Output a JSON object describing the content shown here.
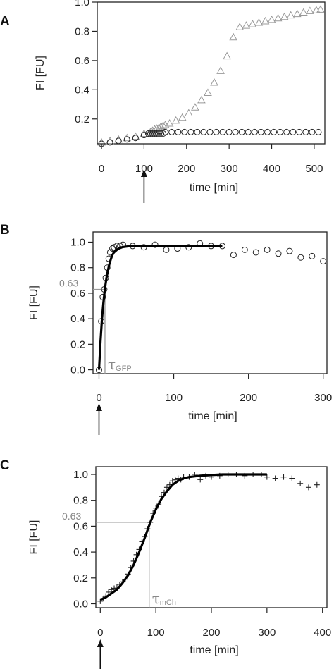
{
  "chart_data": [
    {
      "panel": "A",
      "type": "scatter",
      "xlabel": "time [min]",
      "ylabel": "FI [FU]",
      "xlim": [
        -10,
        525
      ],
      "ylim": [
        0.03,
        1.0
      ],
      "xticks": [
        0,
        100,
        200,
        300,
        400,
        500
      ],
      "yticks": [
        0.2,
        0.4,
        0.6,
        0.8,
        1.0
      ],
      "arrow_at_x": 100,
      "series": [
        {
          "marker": "triangle",
          "color": "#999999",
          "x": [
            0,
            20,
            40,
            60,
            80,
            100,
            115,
            120,
            125,
            130,
            135,
            140,
            145,
            150,
            160,
            175,
            190,
            205,
            220,
            235,
            250,
            265,
            280,
            295,
            310,
            325,
            340,
            355,
            370,
            385,
            400,
            415,
            430,
            445,
            460,
            475,
            490,
            505,
            515
          ],
          "y": [
            0.04,
            0.05,
            0.06,
            0.07,
            0.08,
            0.1,
            0.11,
            0.12,
            0.13,
            0.135,
            0.14,
            0.15,
            0.155,
            0.16,
            0.17,
            0.19,
            0.21,
            0.24,
            0.28,
            0.33,
            0.38,
            0.45,
            0.53,
            0.63,
            0.76,
            0.83,
            0.84,
            0.85,
            0.86,
            0.87,
            0.88,
            0.89,
            0.9,
            0.91,
            0.92,
            0.93,
            0.94,
            0.945,
            0.95
          ]
        },
        {
          "marker": "circle",
          "color": "#222222",
          "x": [
            0,
            20,
            40,
            60,
            80,
            100,
            110,
            115,
            120,
            125,
            130,
            135,
            140,
            145,
            150,
            165,
            180,
            195,
            210,
            225,
            240,
            255,
            270,
            285,
            300,
            315,
            330,
            345,
            360,
            375,
            390,
            405,
            420,
            435,
            450,
            465,
            480,
            495,
            510
          ],
          "y": [
            0.03,
            0.04,
            0.05,
            0.06,
            0.07,
            0.09,
            0.1,
            0.1,
            0.1,
            0.1,
            0.1,
            0.1,
            0.1,
            0.1,
            0.11,
            0.11,
            0.11,
            0.11,
            0.11,
            0.11,
            0.11,
            0.11,
            0.11,
            0.11,
            0.11,
            0.11,
            0.11,
            0.11,
            0.11,
            0.11,
            0.11,
            0.11,
            0.11,
            0.11,
            0.11,
            0.11,
            0.11,
            0.11,
            0.11
          ]
        }
      ]
    },
    {
      "panel": "B",
      "type": "scatter",
      "xlabel": "time [min]",
      "ylabel": "FI [FU]",
      "xlim": [
        -8,
        305
      ],
      "ylim": [
        -0.03,
        1.08
      ],
      "xticks": [
        0,
        100,
        200,
        300
      ],
      "yticks": [
        0.0,
        0.2,
        0.4,
        0.6,
        0.8,
        1.0
      ],
      "arrow_at_x": 0,
      "reference_level": 0.63,
      "reference_level_label": "0.63",
      "reference_time": 8,
      "tau_symbol": "τ",
      "tau_subscript": "GFP",
      "series": [
        {
          "marker": "circle",
          "color": "#222222",
          "x": [
            0,
            3,
            5,
            7,
            9,
            11,
            13,
            15,
            18,
            20,
            24,
            28,
            32,
            45,
            60,
            75,
            90,
            105,
            120,
            135,
            150,
            165,
            180,
            195,
            210,
            225,
            240,
            255,
            270,
            285,
            300
          ],
          "y": [
            0.0,
            0.38,
            0.57,
            0.63,
            0.72,
            0.8,
            0.87,
            0.92,
            0.95,
            0.96,
            0.97,
            0.97,
            0.98,
            0.97,
            0.96,
            0.98,
            0.94,
            0.95,
            0.96,
            0.99,
            0.97,
            0.97,
            0.9,
            0.94,
            0.92,
            0.94,
            0.91,
            0.93,
            0.88,
            0.89,
            0.85
          ]
        },
        {
          "marker": "line",
          "color": "#000000",
          "role": "fit",
          "x": [
            0,
            2,
            4,
            6,
            8,
            10,
            12,
            14,
            16,
            18,
            20,
            24,
            28,
            32,
            40,
            50,
            60,
            80,
            100,
            120,
            140,
            160,
            165
          ],
          "y": [
            0.0,
            0.22,
            0.4,
            0.53,
            0.64,
            0.72,
            0.78,
            0.83,
            0.87,
            0.9,
            0.92,
            0.94,
            0.955,
            0.962,
            0.968,
            0.97,
            0.97,
            0.97,
            0.97,
            0.97,
            0.97,
            0.97,
            0.97
          ]
        }
      ]
    },
    {
      "panel": "C",
      "type": "scatter",
      "xlabel": "time [min]",
      "ylabel": "FI [FU]",
      "xlim": [
        -8,
        408
      ],
      "ylim": [
        -0.03,
        1.06
      ],
      "xticks": [
        0,
        100,
        200,
        300,
        400
      ],
      "yticks": [
        0.0,
        0.2,
        0.4,
        0.6,
        0.8,
        1.0
      ],
      "arrow_at_x": 0,
      "reference_level": 0.63,
      "reference_level_label": "0.63",
      "reference_time": 88,
      "tau_symbol": "τ",
      "tau_subscript": "mCh",
      "series": [
        {
          "marker": "plus",
          "color": "#222222",
          "x": [
            0,
            5,
            10,
            15,
            20,
            25,
            30,
            35,
            40,
            45,
            50,
            55,
            60,
            65,
            70,
            75,
            80,
            85,
            90,
            95,
            100,
            105,
            110,
            115,
            120,
            125,
            130,
            135,
            140,
            145,
            150,
            160,
            170,
            180,
            190,
            200,
            215,
            230,
            245,
            260,
            275,
            290,
            300,
            315,
            330,
            345,
            360,
            375,
            390
          ],
          "y": [
            0.02,
            0.04,
            0.06,
            0.09,
            0.11,
            0.12,
            0.13,
            0.15,
            0.17,
            0.19,
            0.23,
            0.28,
            0.33,
            0.38,
            0.42,
            0.48,
            0.52,
            0.58,
            0.63,
            0.7,
            0.74,
            0.77,
            0.83,
            0.86,
            0.9,
            0.92,
            0.95,
            0.96,
            0.97,
            0.96,
            0.98,
            0.98,
            1.0,
            0.96,
            0.99,
            0.98,
            0.99,
            1.0,
            1.0,
            0.99,
            1.0,
            1.0,
            0.98,
            0.97,
            0.98,
            0.97,
            0.93,
            0.9,
            0.92
          ]
        },
        {
          "marker": "line",
          "color": "#000000",
          "role": "fit",
          "x": [
            0,
            10,
            20,
            30,
            40,
            50,
            60,
            70,
            80,
            90,
            100,
            110,
            120,
            130,
            140,
            150,
            160,
            180,
            200,
            220,
            240,
            260,
            280,
            300
          ],
          "y": [
            0.03,
            0.05,
            0.08,
            0.11,
            0.16,
            0.22,
            0.3,
            0.4,
            0.51,
            0.63,
            0.73,
            0.81,
            0.87,
            0.92,
            0.95,
            0.97,
            0.98,
            0.99,
            0.995,
            1.0,
            1.0,
            1.0,
            1.0,
            1.0
          ]
        }
      ]
    }
  ]
}
